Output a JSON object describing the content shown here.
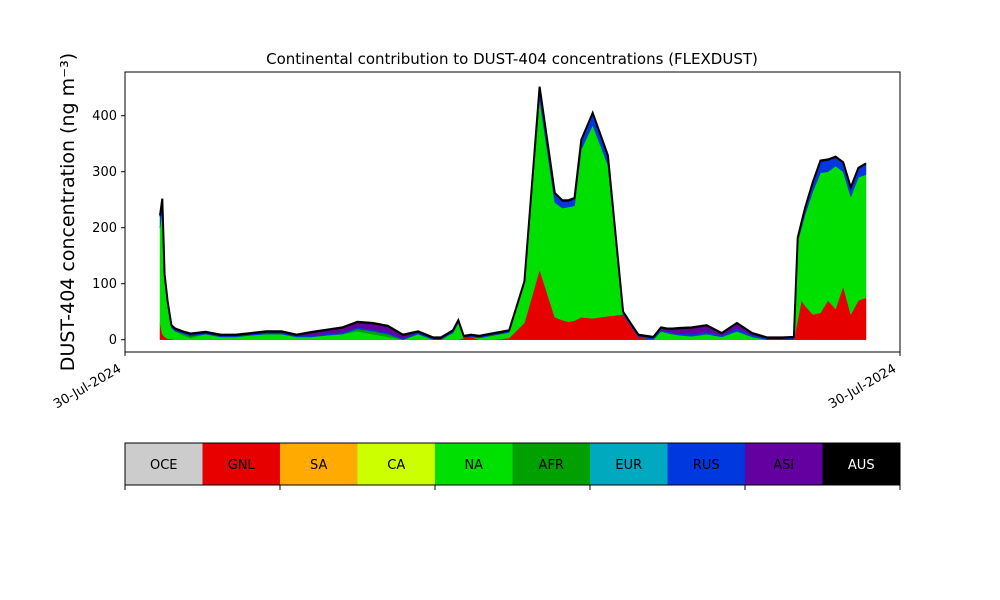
{
  "chart_data": {
    "type": "area",
    "stacked": true,
    "title": "Continental contribution to DUST-404 concentrations (FLEXDUST)",
    "ylabel": "DUST-404 concentration (ng m⁻³)",
    "xlabel": "",
    "x_tick_labels": [
      "30-Jul-2024",
      "30-Jul-2024"
    ],
    "ylim": [
      -22,
      478
    ],
    "y_ticks": [
      0,
      100,
      200,
      300,
      400
    ],
    "grid": false,
    "x": [
      0.0,
      0.3,
      0.6,
      1.0,
      1.5,
      2.0,
      3.0,
      4.0,
      6.0,
      8.0,
      10.0,
      12.0,
      14.0,
      16.0,
      18.0,
      20.0,
      22.0,
      24.0,
      26.0,
      28.0,
      30.0,
      32.0,
      34.0,
      36.0,
      37.0,
      38.0,
      38.6,
      39.3,
      40.0,
      41.0,
      42.0,
      44.0,
      46.0,
      48.0,
      50.0,
      52.0,
      53.0,
      53.8,
      54.6,
      55.5,
      57.0,
      59.0,
      61.0,
      63.0,
      65.0,
      66.0,
      66.8,
      67.5,
      68.5,
      70.0,
      72.0,
      74.0,
      76.0,
      78.0,
      80.0,
      82.0,
      83.5,
      84.0,
      84.5,
      85.0,
      86.0,
      87.0,
      88.0,
      89.0,
      90.0,
      91.0,
      92.0,
      93.0
    ],
    "series": [
      {
        "name": "GNL",
        "color": "#e60000",
        "values": [
          30,
          10,
          5,
          2,
          1,
          0,
          0,
          0,
          0,
          0,
          0,
          0,
          0,
          0,
          0,
          0,
          0,
          0,
          0,
          0,
          0,
          0,
          0,
          0,
          0,
          0,
          0,
          0,
          3,
          5,
          0,
          0,
          3,
          30,
          125,
          40,
          35,
          32,
          34,
          40,
          38,
          42,
          45,
          5,
          0,
          0,
          0,
          0,
          0,
          0,
          0,
          0,
          0,
          0,
          0,
          0,
          0,
          35,
          70,
          60,
          45,
          48,
          70,
          55,
          95,
          45,
          70,
          75
        ]
      },
      {
        "name": "NA",
        "color": "#00e000",
        "values": [
          170,
          220,
          100,
          60,
          20,
          15,
          8,
          3,
          10,
          5,
          5,
          8,
          10,
          10,
          5,
          5,
          8,
          10,
          15,
          10,
          5,
          0,
          10,
          0,
          0,
          8,
          12,
          30,
          0,
          0,
          3,
          8,
          10,
          70,
          305,
          205,
          200,
          205,
          205,
          300,
          345,
          270,
          0,
          0,
          0,
          15,
          12,
          10,
          8,
          6,
          10,
          5,
          15,
          5,
          0,
          0,
          0,
          140,
          130,
          165,
          220,
          250,
          230,
          255,
          205,
          210,
          220,
          220
        ]
      },
      {
        "name": "AFR",
        "color": "#00a000",
        "values": [
          0,
          0,
          0,
          0,
          0,
          0,
          3,
          3,
          0,
          0,
          0,
          0,
          0,
          0,
          0,
          0,
          0,
          0,
          4,
          5,
          5,
          0,
          0,
          0,
          0,
          0,
          0,
          0,
          0,
          0,
          0,
          0,
          0,
          0,
          0,
          0,
          0,
          0,
          0,
          0,
          0,
          0,
          0,
          0,
          0,
          0,
          0,
          0,
          0,
          0,
          0,
          0,
          0,
          0,
          0,
          0,
          0,
          0,
          0,
          0,
          0,
          0,
          0,
          0,
          0,
          0,
          0,
          0
        ]
      },
      {
        "name": "RUS",
        "color": "#0038e0",
        "values": [
          20,
          20,
          10,
          5,
          3,
          3,
          2,
          3,
          2,
          2,
          2,
          2,
          3,
          3,
          2,
          2,
          3,
          3,
          3,
          3,
          3,
          2,
          3,
          2,
          2,
          2,
          3,
          3,
          2,
          2,
          2,
          2,
          2,
          2,
          20,
          15,
          12,
          10,
          12,
          15,
          20,
          15,
          3,
          2,
          3,
          2,
          3,
          3,
          3,
          4,
          4,
          3,
          5,
          3,
          2,
          2,
          3,
          5,
          8,
          10,
          15,
          20,
          20,
          15,
          15,
          15,
          15,
          18
        ]
      },
      {
        "name": "ASI",
        "color": "#6400a0",
        "values": [
          0,
          0,
          0,
          0,
          0,
          0,
          0,
          0,
          0,
          0,
          0,
          0,
          0,
          0,
          0,
          5,
          5,
          7,
          8,
          10,
          10,
          5,
          0,
          0,
          0,
          0,
          0,
          0,
          0,
          0,
          0,
          0,
          0,
          0,
          0,
          0,
          0,
          0,
          0,
          0,
          0,
          0,
          0,
          0,
          0,
          3,
          3,
          5,
          8,
          10,
          10,
          2,
          8,
          2,
          0,
          0,
          0,
          0,
          0,
          0,
          0,
          0,
          0,
          0,
          0,
          0,
          0,
          0
        ]
      },
      {
        "name": "AUS",
        "color": "#000000",
        "values": [
          2,
          2,
          2,
          2,
          2,
          2,
          2,
          2,
          2,
          2,
          2,
          2,
          2,
          2,
          2,
          2,
          2,
          2,
          2,
          2,
          2,
          2,
          2,
          2,
          2,
          2,
          2,
          2,
          2,
          2,
          2,
          2,
          2,
          2,
          2,
          2,
          2,
          2,
          2,
          2,
          2,
          2,
          2,
          2,
          2,
          2,
          2,
          2,
          2,
          2,
          2,
          2,
          2,
          2,
          2,
          2,
          2,
          2,
          2,
          2,
          2,
          2,
          2,
          2,
          2,
          2,
          2,
          2
        ]
      }
    ],
    "legend": {
      "placement": "below",
      "entries": [
        {
          "name": "OCE",
          "color": "#cccccc",
          "text_color": "#000000"
        },
        {
          "name": "GNL",
          "color": "#e60000",
          "text_color": "#000000"
        },
        {
          "name": "SA",
          "color": "#ffaa00",
          "text_color": "#000000"
        },
        {
          "name": "CA",
          "color": "#ccff00",
          "text_color": "#000000"
        },
        {
          "name": "NA",
          "color": "#00e000",
          "text_color": "#000000"
        },
        {
          "name": "AFR",
          "color": "#00a000",
          "text_color": "#000000"
        },
        {
          "name": "EUR",
          "color": "#00a8c0",
          "text_color": "#000000"
        },
        {
          "name": "RUS",
          "color": "#0038e0",
          "text_color": "#000000"
        },
        {
          "name": "ASI",
          "color": "#6400a0",
          "text_color": "#000000"
        },
        {
          "name": "AUS",
          "color": "#000000",
          "text_color": "#ffffff"
        }
      ]
    }
  }
}
